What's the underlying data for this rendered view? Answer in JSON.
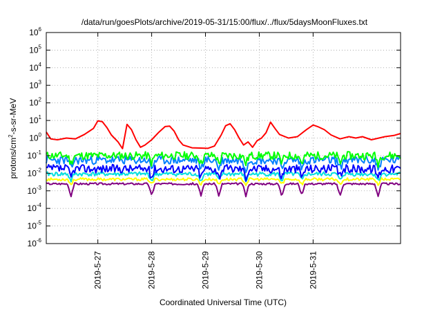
{
  "chart_data": {
    "type": "line",
    "title": "/data/run/goesPlots/archive/2019-05-31/15:00/flux/../flux/5daysMoonFluxes.txt",
    "xlabel": "Coordinated Universal Time (UTC)",
    "ylabel": {
      "base": "protons/cm",
      "exponent": "2",
      "rest": "-s-sr-MeV"
    },
    "x_range": [
      "2019-05-26T01:00",
      "2019-06-01T15:00"
    ],
    "y_scale": "log",
    "ylim": [
      1e-06,
      1000000.0
    ],
    "grid": true,
    "legend": "none",
    "x_ticks": [
      {
        "label": "2019-5-27",
        "value": "2019-05-27T00:00"
      },
      {
        "label": "2019-5-28",
        "value": "2019-05-28T00:00"
      },
      {
        "label": "2019-5-29",
        "value": "2019-05-29T00:00"
      },
      {
        "label": "2019-5-30",
        "value": "2019-05-30T00:00"
      },
      {
        "label": "2019-5-31",
        "value": "2019-05-31T00:00"
      }
    ],
    "y_ticks": [
      {
        "base": "10",
        "exp": "6",
        "value": 1000000.0
      },
      {
        "base": "10",
        "exp": "5",
        "value": 100000.0
      },
      {
        "base": "10",
        "exp": "4",
        "value": 10000.0
      },
      {
        "base": "10",
        "exp": "3",
        "value": 1000.0
      },
      {
        "base": "10",
        "exp": "2",
        "value": 100.0
      },
      {
        "base": "10",
        "exp": "1",
        "value": 10.0
      },
      {
        "base": "10",
        "exp": "0",
        "value": 1
      },
      {
        "base": "10",
        "exp": "-1",
        "value": 0.1
      },
      {
        "base": "10",
        "exp": "-2",
        "value": 0.01
      },
      {
        "base": "10",
        "exp": "-3",
        "value": 0.001
      },
      {
        "base": "10",
        "exp": "-4",
        "value": 0.0001
      },
      {
        "base": "10",
        "exp": "-5",
        "value": 1e-05
      },
      {
        "base": "10",
        "exp": "-6",
        "value": 1e-06
      }
    ],
    "series": [
      {
        "color": "#ff0000",
        "points": [
          [
            "2019-05-26T01:00",
            2.2
          ],
          [
            "2019-05-26T03:00",
            0.9
          ],
          [
            "2019-05-26T06:00",
            0.8
          ],
          [
            "2019-05-26T10:00",
            1.0
          ],
          [
            "2019-05-26T14:00",
            0.9
          ],
          [
            "2019-05-26T18:00",
            1.6
          ],
          [
            "2019-05-26T22:00",
            3.5
          ],
          [
            "2019-05-27T00:00",
            9.5
          ],
          [
            "2019-05-27T02:00",
            8.5
          ],
          [
            "2019-05-27T04:00",
            4.0
          ],
          [
            "2019-05-27T06:00",
            1.5
          ],
          [
            "2019-05-27T09:00",
            0.6
          ],
          [
            "2019-05-27T11:00",
            0.25
          ],
          [
            "2019-05-27T13:00",
            6.0
          ],
          [
            "2019-05-27T15:00",
            3.0
          ],
          [
            "2019-05-27T17:00",
            0.8
          ],
          [
            "2019-05-27T19:00",
            0.3
          ],
          [
            "2019-05-27T21:00",
            0.4
          ],
          [
            "2019-05-28T00:00",
            0.8
          ],
          [
            "2019-05-28T03:00",
            2.0
          ],
          [
            "2019-05-28T06:00",
            4.5
          ],
          [
            "2019-05-28T08:00",
            4.8
          ],
          [
            "2019-05-28T10:00",
            2.5
          ],
          [
            "2019-05-28T12:00",
            0.8
          ],
          [
            "2019-05-28T14:00",
            0.4
          ],
          [
            "2019-05-28T18:00",
            0.28
          ],
          [
            "2019-05-28T22:00",
            0.27
          ],
          [
            "2019-05-29T01:00",
            0.26
          ],
          [
            "2019-05-29T04:00",
            0.35
          ],
          [
            "2019-05-29T07:00",
            1.5
          ],
          [
            "2019-05-29T09:00",
            5.0
          ],
          [
            "2019-05-29T11:00",
            6.5
          ],
          [
            "2019-05-29T13:00",
            3.0
          ],
          [
            "2019-05-29T15:00",
            1.0
          ],
          [
            "2019-05-29T17:00",
            0.4
          ],
          [
            "2019-05-29T19:00",
            0.6
          ],
          [
            "2019-05-29T21:00",
            0.3
          ],
          [
            "2019-05-29T23:00",
            0.7
          ],
          [
            "2019-05-30T01:00",
            1.0
          ],
          [
            "2019-05-30T03:00",
            2.0
          ],
          [
            "2019-05-30T05:00",
            8.0
          ],
          [
            "2019-05-30T07:00",
            3.5
          ],
          [
            "2019-05-30T09:00",
            1.6
          ],
          [
            "2019-05-30T13:00",
            1.0
          ],
          [
            "2019-05-30T17:00",
            1.2
          ],
          [
            "2019-05-30T21:00",
            3.0
          ],
          [
            "2019-05-31T00:00",
            5.5
          ],
          [
            "2019-05-31T02:00",
            4.5
          ],
          [
            "2019-05-31T05:00",
            3.0
          ],
          [
            "2019-05-31T08:00",
            1.5
          ],
          [
            "2019-05-31T12:00",
            0.9
          ],
          [
            "2019-05-31T16:00",
            1.2
          ],
          [
            "2019-05-31T19:00",
            1.0
          ],
          [
            "2019-05-31T22:00",
            1.2
          ],
          [
            "2019-06-01T02:00",
            0.8
          ],
          [
            "2019-06-01T08:00",
            1.2
          ],
          [
            "2019-06-01T12:00",
            1.4
          ],
          [
            "2019-06-01T15:00",
            1.8
          ]
        ]
      },
      {
        "color": "#00ff00",
        "base": 0.1,
        "spread": 0.28,
        "dips": 0.45,
        "seed": 11
      },
      {
        "color": "#0080ff",
        "base": 0.055,
        "spread": 0.3,
        "dips": 0.5,
        "seed": 23
      },
      {
        "color": "#0000ff",
        "base": 0.018,
        "spread": 0.3,
        "dips": 0.5,
        "seed": 37
      },
      {
        "color": "#00e0e0",
        "base": 0.009,
        "spread": 0.15,
        "dips": 0.4,
        "seed": 41
      },
      {
        "color": "#ffff00",
        "base": 0.0045,
        "spread": 0.1,
        "dips": 0.3,
        "seed": 53
      },
      {
        "color": "#800080",
        "base": 0.0025,
        "spread": 0.07,
        "dips": 0.7,
        "seed": 67
      }
    ]
  }
}
